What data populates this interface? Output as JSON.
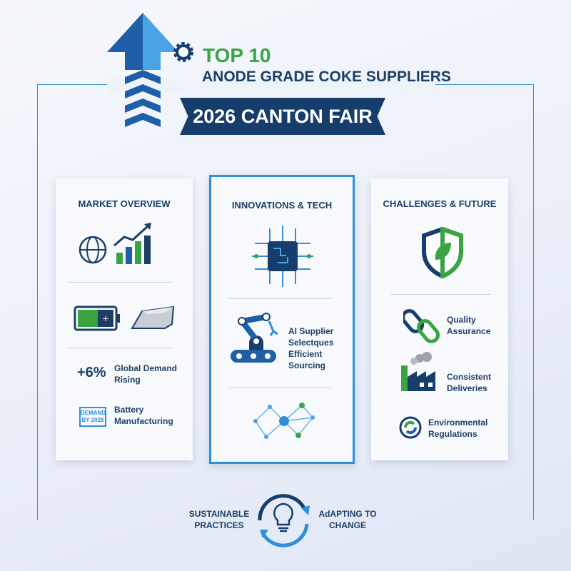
{
  "header": {
    "top": "TOP 10",
    "subtitle": "ANODE GRADE COKE SUPPLIERS",
    "banner": "2026 CANTON FAIR"
  },
  "colors": {
    "navy": "#173d6c",
    "blue": "#2f8fd8",
    "green": "#3aa442"
  },
  "cards": [
    {
      "title": "MARKET OVERVIEW",
      "items": [
        {
          "value": "+6%",
          "label": "Global Demand Rising"
        },
        {
          "badge": "DEMAND BY 2028",
          "label": "Battery Manufacturing"
        }
      ]
    },
    {
      "title": "INNOVATIONS & TECH",
      "items": [
        {
          "label": "AI Supplier Selectques Efficient Sourcing"
        }
      ]
    },
    {
      "title": "CHALLENGES & FUTURE",
      "items": [
        {
          "label": "Quality Assurance"
        },
        {
          "label": "Consistent Deliveries"
        },
        {
          "label": "Environmental Regulations"
        }
      ]
    }
  ],
  "footer": {
    "left": "SUSTAINABLE PRACTICES",
    "right": "AdAPTING TO CHANGE"
  }
}
